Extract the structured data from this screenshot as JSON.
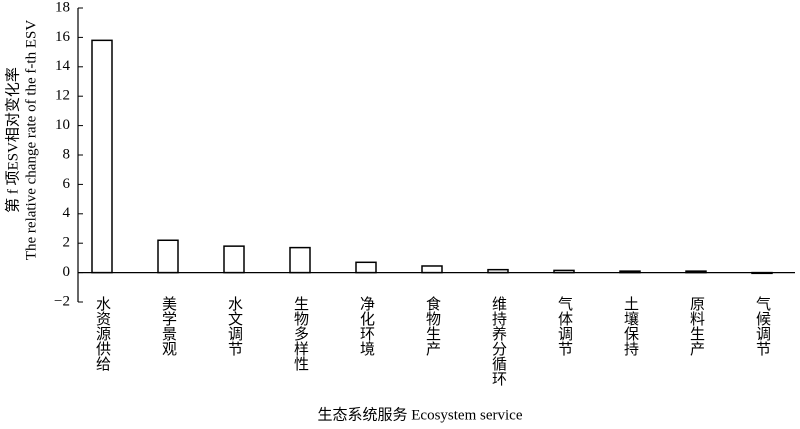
{
  "chart_data": {
    "type": "bar",
    "y_label_lines": [
      "第 f 项ESV相对变化率",
      "The relative change rate of the f-th ESV"
    ],
    "x_label": "生态系统服务 Ecosystem service",
    "categories": [
      "水资源供给",
      "美学景观",
      "水文调节",
      "生物多样性",
      "净化环境",
      "食物生产",
      "维持养分循环",
      "气体调节",
      "土壤保持",
      "原料生产",
      "气候调节"
    ],
    "values": [
      15.8,
      2.2,
      1.8,
      1.7,
      0.7,
      0.45,
      0.2,
      0.15,
      0.1,
      0.1,
      -0.05
    ],
    "color": "#ffffff",
    "stroke": "#000000",
    "ylim": [
      -2,
      18
    ],
    "yticks": [
      {
        "value": -2,
        "label": "−2"
      },
      0,
      2,
      4,
      6,
      8,
      10,
      12,
      14,
      16,
      18
    ],
    "grid": false
  }
}
